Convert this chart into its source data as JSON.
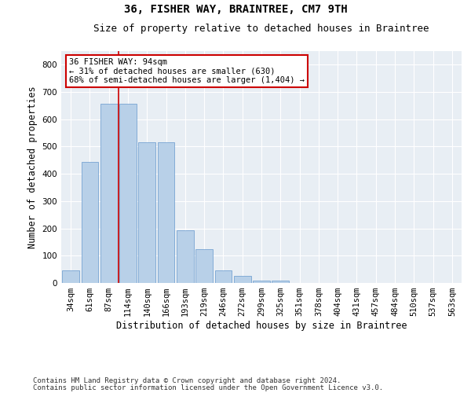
{
  "title": "36, FISHER WAY, BRAINTREE, CM7 9TH",
  "subtitle": "Size of property relative to detached houses in Braintree",
  "xlabel": "Distribution of detached houses by size in Braintree",
  "ylabel": "Number of detached properties",
  "bar_labels": [
    "34sqm",
    "61sqm",
    "87sqm",
    "114sqm",
    "140sqm",
    "166sqm",
    "193sqm",
    "219sqm",
    "246sqm",
    "272sqm",
    "299sqm",
    "325sqm",
    "351sqm",
    "378sqm",
    "404sqm",
    "431sqm",
    "457sqm",
    "484sqm",
    "510sqm",
    "537sqm",
    "563sqm"
  ],
  "bar_values": [
    47,
    443,
    657,
    658,
    516,
    516,
    193,
    125,
    47,
    25,
    10,
    10,
    0,
    0,
    0,
    0,
    0,
    0,
    0,
    0,
    0
  ],
  "bar_color": "#b8d0e8",
  "bar_edge_color": "#6699cc",
  "vline_x": 2.5,
  "vline_color": "#cc0000",
  "annotation_text": "36 FISHER WAY: 94sqm\n← 31% of detached houses are smaller (630)\n68% of semi-detached houses are larger (1,404) →",
  "annotation_box_color": "#ffffff",
  "annotation_box_edge": "#cc0000",
  "ylim": [
    0,
    850
  ],
  "yticks": [
    0,
    100,
    200,
    300,
    400,
    500,
    600,
    700,
    800
  ],
  "plot_bg_color": "#e8eef4",
  "footer1": "Contains HM Land Registry data © Crown copyright and database right 2024.",
  "footer2": "Contains public sector information licensed under the Open Government Licence v3.0.",
  "title_fontsize": 10,
  "subtitle_fontsize": 9,
  "xlabel_fontsize": 8.5,
  "ylabel_fontsize": 8.5,
  "tick_fontsize": 7.5,
  "annotation_fontsize": 7.5,
  "footer_fontsize": 6.5
}
